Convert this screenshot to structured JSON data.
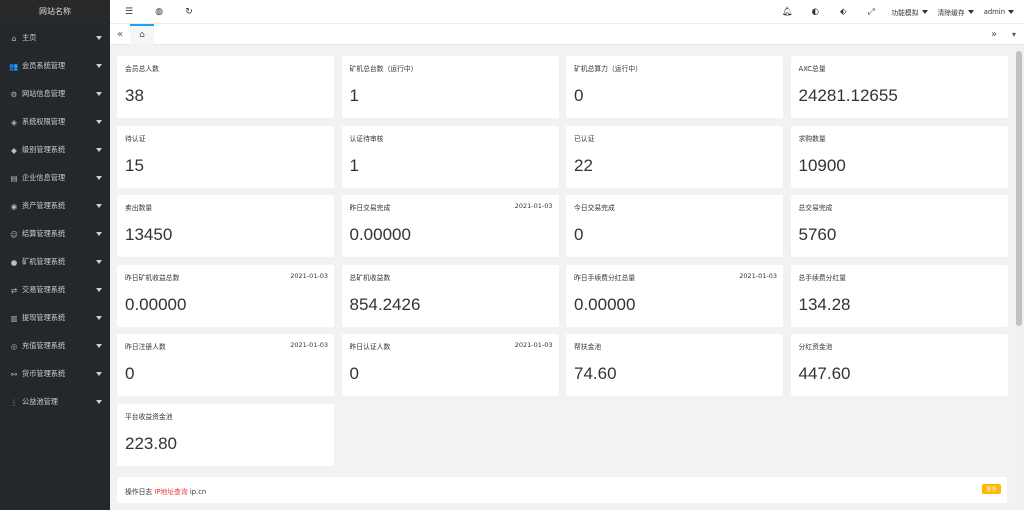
{
  "sidebar": {
    "brand": "网站名称",
    "items": [
      {
        "label": "主页",
        "icon": "home-icon",
        "glyph": "⌂"
      },
      {
        "label": "会员系统管理",
        "icon": "users-icon",
        "glyph": "👥"
      },
      {
        "label": "网站信息管理",
        "icon": "gear-icon",
        "glyph": "⚙"
      },
      {
        "label": "系统权限管理",
        "icon": "shield-icon",
        "glyph": "◈"
      },
      {
        "label": "级别管理系统",
        "icon": "diamond-icon",
        "glyph": "◆"
      },
      {
        "label": "企业信息管理",
        "icon": "document-icon",
        "glyph": "▤"
      },
      {
        "label": "资产管理系统",
        "icon": "asset-icon",
        "glyph": "◉"
      },
      {
        "label": "结算管理系统",
        "icon": "settle-icon",
        "glyph": "☺"
      },
      {
        "label": "矿机管理系统",
        "icon": "miner-icon",
        "glyph": "●"
      },
      {
        "label": "交易管理系统",
        "icon": "trade-icon",
        "glyph": "⇄"
      },
      {
        "label": "提现管理系统",
        "icon": "withdraw-icon",
        "glyph": "▥"
      },
      {
        "label": "充值管理系统",
        "icon": "recharge-icon",
        "glyph": "◎"
      },
      {
        "label": "货币管理系统",
        "icon": "currency-icon",
        "glyph": "⚯"
      },
      {
        "label": "公益池管理",
        "icon": "pool-icon",
        "glyph": "⋮"
      }
    ]
  },
  "topbar": {
    "menu_toggle_icon": "menu-icon",
    "globe_icon": "globe-icon",
    "refresh_icon": "refresh-icon",
    "bell_icon": "bell-icon",
    "theme_icon": "palette-icon",
    "tag_icon": "tag-icon",
    "fullscreen_icon": "fullscreen-icon",
    "menu_simulate": "功能模拟",
    "clear_cache": "清除缓存",
    "user": "admin"
  },
  "tabs": {
    "home_tab_icon": "home-icon"
  },
  "stats": [
    {
      "title": "会员总人数",
      "date": "",
      "value": "38"
    },
    {
      "title": "矿机总台数（运行中）",
      "date": "",
      "value": "1"
    },
    {
      "title": "矿机总算力（运行中）",
      "date": "",
      "value": "0"
    },
    {
      "title": "AXC总量",
      "date": "",
      "value": "24281.12655"
    },
    {
      "title": "待认证",
      "date": "",
      "value": "15"
    },
    {
      "title": "认证待审核",
      "date": "",
      "value": "1"
    },
    {
      "title": "已认证",
      "date": "",
      "value": "22"
    },
    {
      "title": "求购数量",
      "date": "",
      "value": "10900"
    },
    {
      "title": "卖出数量",
      "date": "",
      "value": "13450"
    },
    {
      "title": "昨日交易完成",
      "date": "2021-01-03",
      "value": "0.00000"
    },
    {
      "title": "今日交易完成",
      "date": "",
      "value": "0"
    },
    {
      "title": "总交易完成",
      "date": "",
      "value": "5760"
    },
    {
      "title": "昨日矿机收益总数",
      "date": "2021-01-03",
      "value": "0.00000"
    },
    {
      "title": "总矿机收益数",
      "date": "",
      "value": "854.2426"
    },
    {
      "title": "昨日手续费分红总量",
      "date": "2021-01-03",
      "value": "0.00000"
    },
    {
      "title": "总手续费分红量",
      "date": "",
      "value": "134.28"
    },
    {
      "title": "昨日注册人数",
      "date": "2021-01-03",
      "value": "0"
    },
    {
      "title": "昨日认证人数",
      "date": "2021-01-03",
      "value": "0"
    },
    {
      "title": "帮扶金池",
      "date": "",
      "value": "74.60"
    },
    {
      "title": "分红资金池",
      "date": "",
      "value": "447.60"
    },
    {
      "title": "平台收益资金池",
      "date": "",
      "value": "223.80"
    }
  ],
  "log": {
    "title": "操作日志",
    "ip_link": "IP地址查询",
    "domain": "ip.cn",
    "badge": "更多"
  },
  "colors": {
    "sidebar_bg": "#24272b",
    "tab_active": "#1e9fff",
    "badge": "#ffb800",
    "link_red": "#e83a3a"
  }
}
